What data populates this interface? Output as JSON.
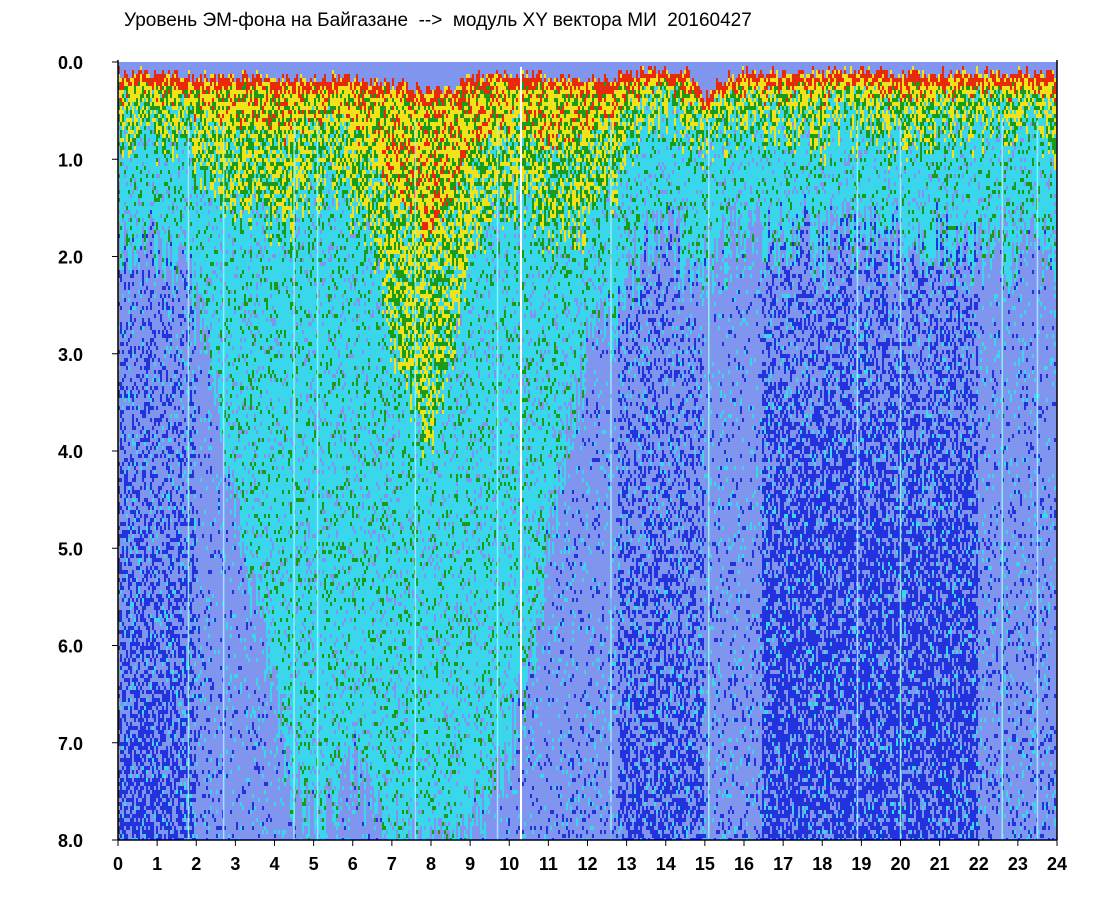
{
  "chart_data": {
    "type": "heatmap",
    "title": "Уровень ЭМ-фона на Байгазане  -->  модуль XY вектора МИ  20160427",
    "xlabel": "",
    "ylabel": "",
    "xlim": [
      0,
      24
    ],
    "ylim": [
      0,
      8
    ],
    "y_axis_inverted": true,
    "x_ticks": [
      "0",
      "1",
      "2",
      "3",
      "4",
      "5",
      "6",
      "7",
      "8",
      "9",
      "10",
      "11",
      "12",
      "13",
      "14",
      "15",
      "16",
      "17",
      "18",
      "19",
      "20",
      "21",
      "22",
      "23",
      "24"
    ],
    "y_ticks": [
      "0.0",
      "1.0",
      "2.0",
      "3.0",
      "4.0",
      "5.0",
      "6.0",
      "7.0",
      "8.0"
    ],
    "grid": false,
    "legend": "none",
    "colorscale": [
      "#0000e6",
      "#4466ee",
      "#8fa3f0",
      "#37e6ee",
      "#1a9b1a",
      "#f2e21a",
      "#e62a0a"
    ],
    "baseline_colors": {
      "deep_blue": "#2233dd",
      "light_blue": "#7f95ee",
      "cyan": "#3ad6ec"
    },
    "profile_hours": [
      0,
      0.5,
      1,
      1.5,
      2,
      2.5,
      3,
      3.5,
      4,
      4.5,
      5,
      5.5,
      6,
      6.5,
      7,
      7.5,
      8,
      8.5,
      9,
      9.5,
      10,
      10.5,
      11,
      11.5,
      12,
      12.5,
      13,
      13.5,
      14,
      14.5,
      15,
      15.5,
      16,
      16.5,
      17,
      17.5,
      18,
      18.5,
      19,
      19.5,
      20,
      20.5,
      21,
      21.5,
      22,
      22.5,
      23,
      23.5,
      24
    ],
    "level_top": [
      0.05,
      0.05,
      0.05,
      0.05,
      0.08,
      0.1,
      0.1,
      0.08,
      0.1,
      0.1,
      0.1,
      0.1,
      0.1,
      0.12,
      0.15,
      0.2,
      0.25,
      0.2,
      0.1,
      0.08,
      0.05,
      0.05,
      0.1,
      0.1,
      0.1,
      0.1,
      0.05,
      0.02,
      0.02,
      0.02,
      0.3,
      0.1,
      0.05,
      0.05,
      0.05,
      0.05,
      0.02,
      0.02,
      0.02,
      0.05,
      0.05,
      0.05,
      0.05,
      0.05,
      0.05,
      0.05,
      0.05,
      0.05,
      0.05
    ],
    "level_green": [
      0.7,
      0.7,
      0.9,
      0.9,
      1.2,
      1.4,
      1.5,
      1.5,
      1.8,
      1.6,
      1.3,
      1.3,
      1.5,
      2.0,
      2.8,
      3.5,
      4.0,
      3.0,
      2.0,
      1.6,
      1.4,
      1.5,
      1.8,
      1.8,
      1.7,
      1.5,
      0.9,
      0.7,
      0.6,
      0.7,
      0.9,
      0.8,
      0.7,
      0.7,
      0.7,
      0.8,
      0.8,
      0.7,
      0.7,
      0.8,
      0.8,
      0.8,
      0.7,
      0.7,
      0.7,
      0.7,
      0.7,
      0.8,
      0.9
    ],
    "level_cyan": [
      1.7,
      1.8,
      2.0,
      2.2,
      2.5,
      3.5,
      4.5,
      5.5,
      6.5,
      7.5,
      7.8,
      7.8,
      7.0,
      7.8,
      8.0,
      8.0,
      8.0,
      8.0,
      7.8,
      7.5,
      7.0,
      6.5,
      5.0,
      4.0,
      3.0,
      2.8,
      2.2,
      2.0,
      1.8,
      2.0,
      2.2,
      2.0,
      1.8,
      1.8,
      1.8,
      1.8,
      1.8,
      1.8,
      1.8,
      1.8,
      1.8,
      1.8,
      1.8,
      1.8,
      1.9,
      2.0,
      2.0,
      2.0,
      2.0
    ],
    "bright_vertical_lines_hours": [
      1.8,
      2.7,
      4.5,
      5.1,
      7.6,
      9.7,
      10.3,
      12.6,
      15.1,
      18.9,
      20.0,
      22.6,
      23.5
    ]
  }
}
